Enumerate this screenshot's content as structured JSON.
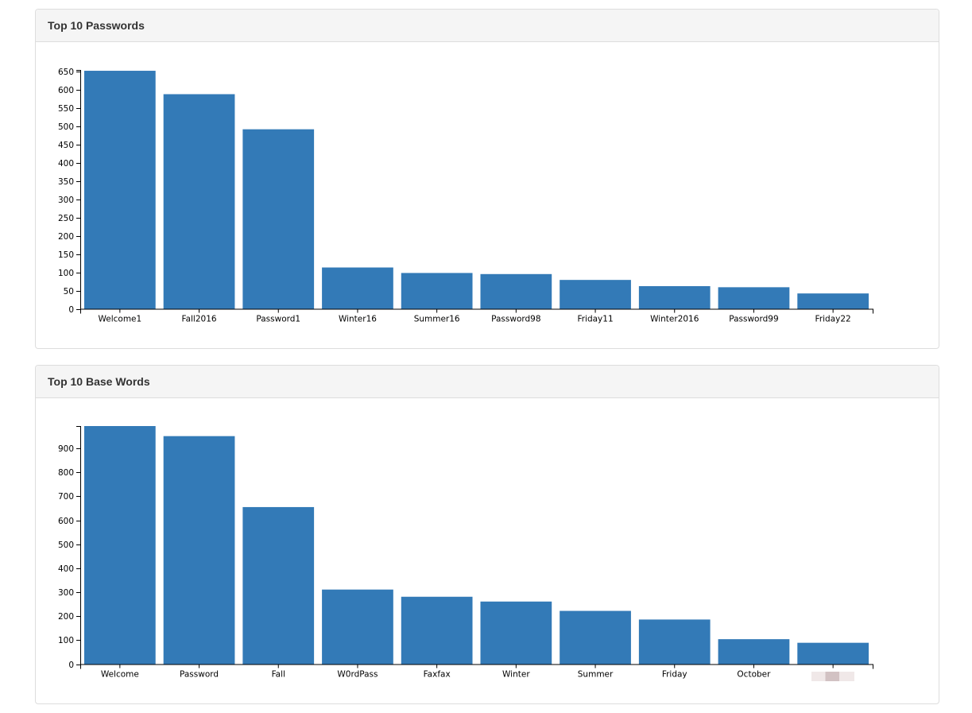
{
  "panels": [
    {
      "title": "Top 10 Passwords",
      "chart_data": {
        "type": "bar",
        "categories": [
          "Welcome1",
          "Fall2016",
          "Password1",
          "Winter16",
          "Summer16",
          "Password98",
          "Friday11",
          "Winter2016",
          "Password99",
          "Friday22"
        ],
        "values": [
          651,
          587,
          491,
          113,
          98,
          95,
          79,
          62,
          59,
          42
        ],
        "ylim": [
          0,
          650
        ],
        "yticks": [
          0,
          50,
          100,
          150,
          200,
          250,
          300,
          350,
          400,
          450,
          500,
          550,
          600,
          650
        ],
        "color": "#337ab7",
        "grid": false,
        "legend": "none"
      }
    },
    {
      "title": "Top 10 Base Words",
      "chart_data": {
        "type": "bar",
        "categories": [
          "Welcome",
          "Password",
          "Fall",
          "W0rdPass",
          "Faxfax",
          "Winter",
          "Summer",
          "Friday",
          "October",
          ""
        ],
        "redacted": [
          false,
          false,
          false,
          false,
          false,
          false,
          false,
          false,
          false,
          true
        ],
        "values": [
          993,
          951,
          655,
          311,
          281,
          261,
          222,
          186,
          104,
          89
        ],
        "ylim": [
          0,
          993
        ],
        "yticks": [
          0,
          100,
          200,
          300,
          400,
          500,
          600,
          700,
          800,
          900
        ],
        "color": "#337ab7",
        "grid": false,
        "legend": "none"
      }
    }
  ]
}
